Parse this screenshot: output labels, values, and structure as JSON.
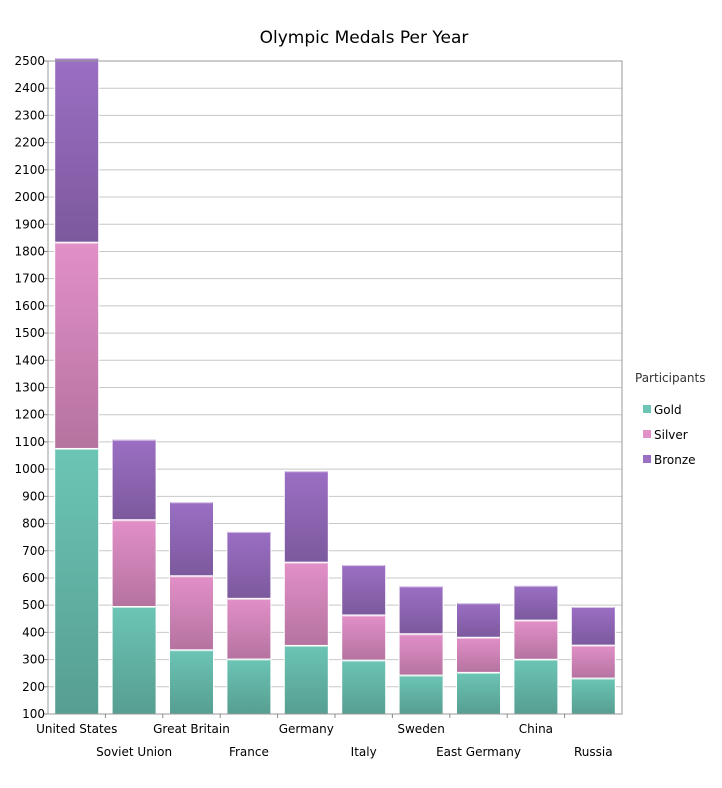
{
  "chart_data": {
    "type": "bar",
    "stacked": true,
    "title": "Olympic Medals Per Year",
    "xlabel": "",
    "ylabel": "",
    "ylim": [
      100,
      2500
    ],
    "ytick_step": 100,
    "grid": true,
    "legend": {
      "title": "Participants",
      "placement": "right"
    },
    "categories": [
      "United States",
      "Soviet Union",
      "Great Britain",
      "France",
      "Germany",
      "Italy",
      "Sweden",
      "East Germany",
      "China",
      "Russia"
    ],
    "series": [
      {
        "name": "Gold",
        "color": "#6cc5b5",
        "values": [
          976,
          395,
          236,
          202,
          252,
          198,
          143,
          153,
          201,
          132
        ]
      },
      {
        "name": "Silver",
        "color": "#e290c8",
        "values": [
          758,
          319,
          272,
          223,
          306,
          166,
          152,
          129,
          144,
          121
        ]
      },
      {
        "name": "Bronze",
        "color": "#9b6fc4",
        "values": [
          678,
          296,
          272,
          246,
          336,
          185,
          176,
          127,
          128,
          142
        ]
      }
    ]
  }
}
